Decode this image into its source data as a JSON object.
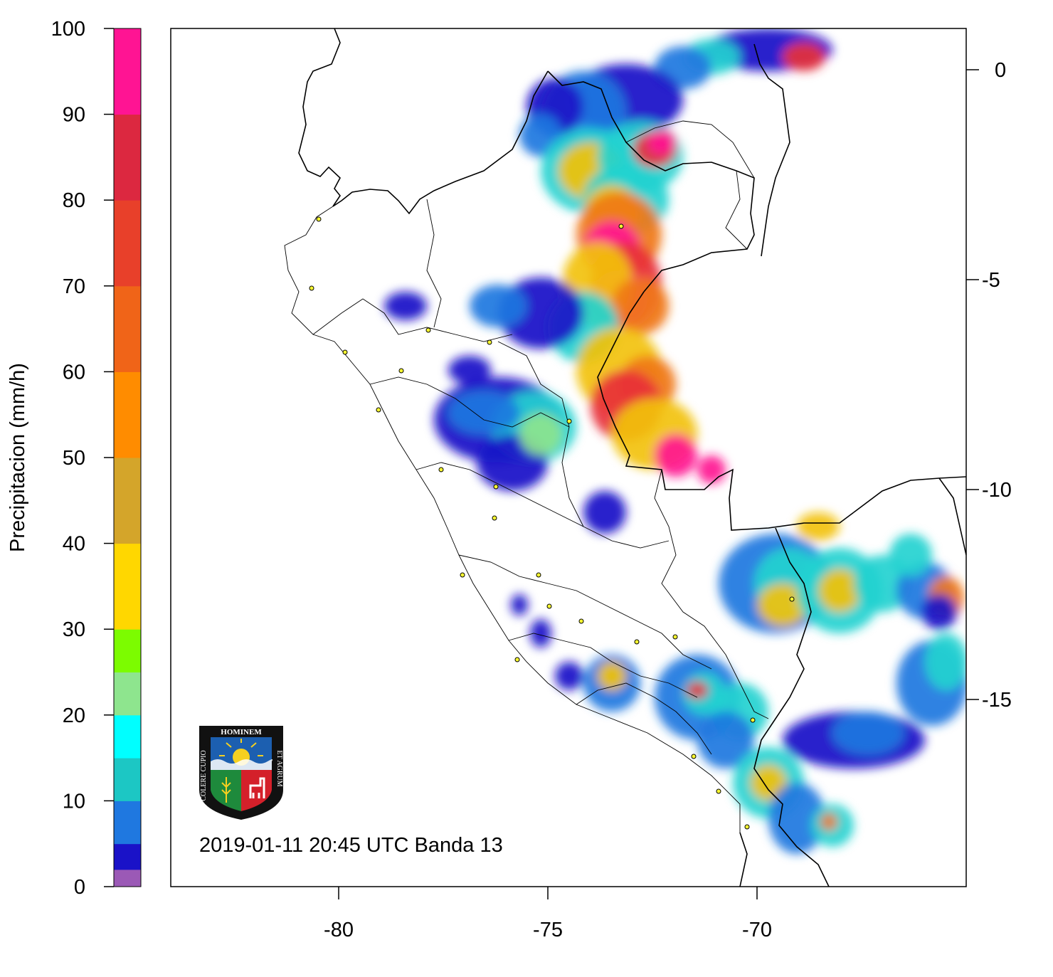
{
  "colorbar": {
    "title": "Precipitacion (mm/h)",
    "ticks": [
      "0",
      "10",
      "20",
      "30",
      "40",
      "50",
      "60",
      "70",
      "80",
      "90",
      "100"
    ],
    "bands": [
      {
        "from": 0,
        "to": 2,
        "color": "#9b59b6"
      },
      {
        "from": 2,
        "to": 5,
        "color": "#1a12c8"
      },
      {
        "from": 5,
        "to": 10,
        "color": "#1f78e0"
      },
      {
        "from": 10,
        "to": 15,
        "color": "#1cc7c4"
      },
      {
        "from": 15,
        "to": 20,
        "color": "#00ffff"
      },
      {
        "from": 20,
        "to": 25,
        "color": "#8ee58e"
      },
      {
        "from": 25,
        "to": 30,
        "color": "#7cfc00"
      },
      {
        "from": 30,
        "to": 40,
        "color": "#ffd700"
      },
      {
        "from": 40,
        "to": 50,
        "color": "#d4a52a"
      },
      {
        "from": 50,
        "to": 60,
        "color": "#ff8c00"
      },
      {
        "from": 60,
        "to": 70,
        "color": "#f06418"
      },
      {
        "from": 70,
        "to": 80,
        "color": "#e8402a"
      },
      {
        "from": 80,
        "to": 90,
        "color": "#dc2840"
      },
      {
        "from": 90,
        "to": 100,
        "color": "#ff1493"
      }
    ]
  },
  "map": {
    "x_ticks": [
      "-80",
      "-75",
      "-70"
    ],
    "y_ticks": [
      "0",
      "-5",
      "-10",
      "-15"
    ],
    "caption": "2019-01-11 20:45 UTC Banda 13"
  },
  "logo": {
    "motto_top": "HOMINEM",
    "motto_left": "COLERE CUPIO",
    "motto_right": "ET AGRUM"
  }
}
